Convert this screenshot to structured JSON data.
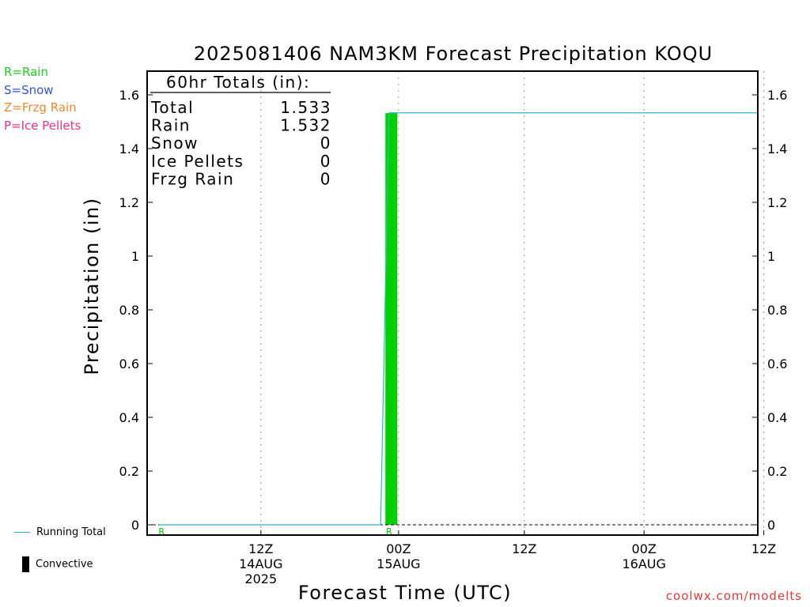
{
  "chart_data": {
    "type": "line",
    "title": "2025081406 NAM3KM Forecast Precipitation KOQU",
    "xlabel": "Forecast Time (UTC)",
    "ylabel": "Precipitation (in)",
    "ylim": [
      0,
      1.68
    ],
    "y_ticks": [
      "0",
      "0.2",
      "0.4",
      "0.6",
      "0.8",
      "1",
      "1.2",
      "1.4",
      "1.6"
    ],
    "x_range_hours": [
      -21.5,
      29.5
    ],
    "x_ticks": [
      {
        "hour": -12,
        "label": "12Z",
        "sub": "14AUG",
        "sub2": "2025"
      },
      {
        "hour": -0.5,
        "label": "00Z",
        "sub": "15AUG",
        "sub2": ""
      },
      {
        "hour": 10,
        "label": "12Z",
        "sub": "",
        "sub2": ""
      },
      {
        "hour": 20,
        "label": "00Z",
        "sub": "16AUG",
        "sub2": ""
      },
      {
        "hour": 30,
        "label": "12Z",
        "sub": "",
        "sub2": ""
      }
    ],
    "grid": "vertical dotted",
    "running_total": {
      "name": "Running Total",
      "color": "#2ab7c7",
      "points": [
        [
          -20.5,
          0.0
        ],
        [
          -2.0,
          0.0
        ],
        [
          -1.3,
          1.533
        ],
        [
          29.5,
          1.533
        ]
      ]
    },
    "bars": [
      {
        "hour_start": -1.6,
        "hour_end": -0.6,
        "value": 1.532,
        "type": "Rain",
        "color": "#00d000"
      }
    ],
    "markers": [
      {
        "hour": -20.3,
        "label": "R",
        "color": "#00c000"
      },
      {
        "hour": -1.3,
        "label": "R",
        "color": "#00c000"
      }
    ],
    "totals": {
      "header": "60hr Totals (in):",
      "rows": [
        {
          "label": "Total",
          "value": "1.533"
        },
        {
          "label": "Rain",
          "value": "1.532"
        },
        {
          "label": "Snow",
          "value": "0"
        },
        {
          "label": "Ice Pellets",
          "value": "0"
        },
        {
          "label": "Frzg Rain",
          "value": "0"
        }
      ]
    }
  },
  "precip_legend": [
    {
      "text": "R=Rain",
      "color": "#22cc22"
    },
    {
      "text": "S=Snow",
      "color": "#3355dd"
    },
    {
      "text": "Z=Frzg Rain",
      "color": "#f08833"
    },
    {
      "text": "P=Ice Pellets",
      "color": "#e8338a"
    }
  ],
  "bottom_legend": {
    "running_total": "Running Total",
    "convective": "Convective"
  },
  "credit": "coolwx.com/modelts"
}
